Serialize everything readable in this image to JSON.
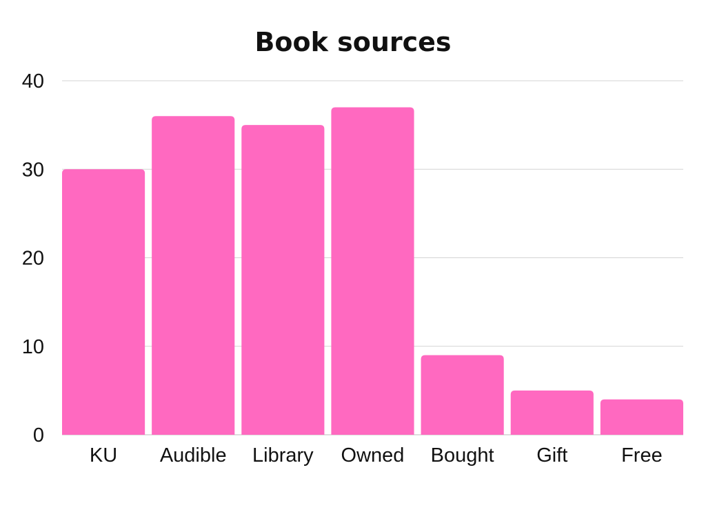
{
  "chart_data": {
    "type": "bar",
    "title": "Book sources",
    "xlabel": "",
    "ylabel": "",
    "categories": [
      "KU",
      "Audible",
      "Library",
      "Owned",
      "Bought",
      "Gift",
      "Free"
    ],
    "values": [
      30,
      36,
      35,
      37,
      9,
      5,
      4
    ],
    "ylim": [
      0,
      40
    ],
    "yticks": [
      "0",
      "10",
      "20",
      "30",
      "40"
    ],
    "grid": true,
    "legend": "none",
    "colors": {
      "bar": "#ff69c0"
    }
  }
}
